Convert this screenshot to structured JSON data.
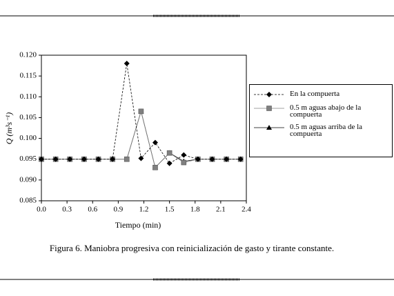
{
  "chart_data": {
    "type": "line",
    "y_label": "Q (m³s⁻¹)",
    "x_label": "Tiempo (min)",
    "caption": "Figura 6. Maniobra progresiva con reinicialización de gasto y tirante constante.",
    "x": [
      0,
      0.167,
      0.333,
      0.5,
      0.667,
      0.833,
      1.0,
      1.167,
      1.333,
      1.5,
      1.667,
      1.833,
      2.0,
      2.167,
      2.333
    ],
    "series": [
      {
        "name": "En la compuerta",
        "color": "#000000",
        "marker": "diamond",
        "dash": true,
        "values": [
          0.095,
          0.095,
          0.095,
          0.095,
          0.095,
          0.095,
          0.118,
          0.0952,
          0.099,
          0.094,
          0.096,
          0.095,
          0.095,
          0.095,
          0.095
        ]
      },
      {
        "name": "0.5 m aguas abajo de la compuerta",
        "color": "#808080",
        "marker": "square",
        "dash": false,
        "values": [
          0.095,
          0.095,
          0.095,
          0.095,
          0.095,
          0.095,
          0.095,
          0.1065,
          0.093,
          0.0965,
          0.0942,
          0.095,
          0.095,
          0.095,
          0.095
        ]
      },
      {
        "name": "0.5 m aguas arriba de la compuerta",
        "color": "#000000",
        "marker": "triangle",
        "dash": false,
        "values": [
          0.095,
          0.095,
          0.095,
          0.095,
          0.095,
          0.095,
          0.095,
          0.1065,
          0.093,
          0.0965,
          0.0945,
          0.095,
          0.095,
          0.095,
          0.095
        ]
      }
    ],
    "xlim": [
      0,
      2.4
    ],
    "xticks": [
      {
        "value": 0,
        "label": "0.0"
      },
      {
        "value": 0.3,
        "label": "0.3"
      },
      {
        "value": 0.6,
        "label": "0.6"
      },
      {
        "value": 0.9,
        "label": "0.9"
      },
      {
        "value": 1.2,
        "label": "1.2"
      },
      {
        "value": 1.5,
        "label": "1.5"
      },
      {
        "value": 1.8,
        "label": "1.8"
      },
      {
        "value": 2.1,
        "label": "2.1"
      },
      {
        "value": 2.4,
        "label": "2.4"
      }
    ],
    "ylim": [
      0.085,
      0.12
    ],
    "yticks": [
      {
        "value": 0.085,
        "label": "0.085"
      },
      {
        "value": 0.09,
        "label": "0.090"
      },
      {
        "value": 0.095,
        "label": "0.095"
      },
      {
        "value": 0.1,
        "label": "0.100"
      },
      {
        "value": 0.105,
        "label": "0.105"
      },
      {
        "value": 0.11,
        "label": "0.110"
      },
      {
        "value": 0.115,
        "label": "0.115"
      },
      {
        "value": 0.12,
        "label": "0.120"
      }
    ],
    "grid": false
  }
}
